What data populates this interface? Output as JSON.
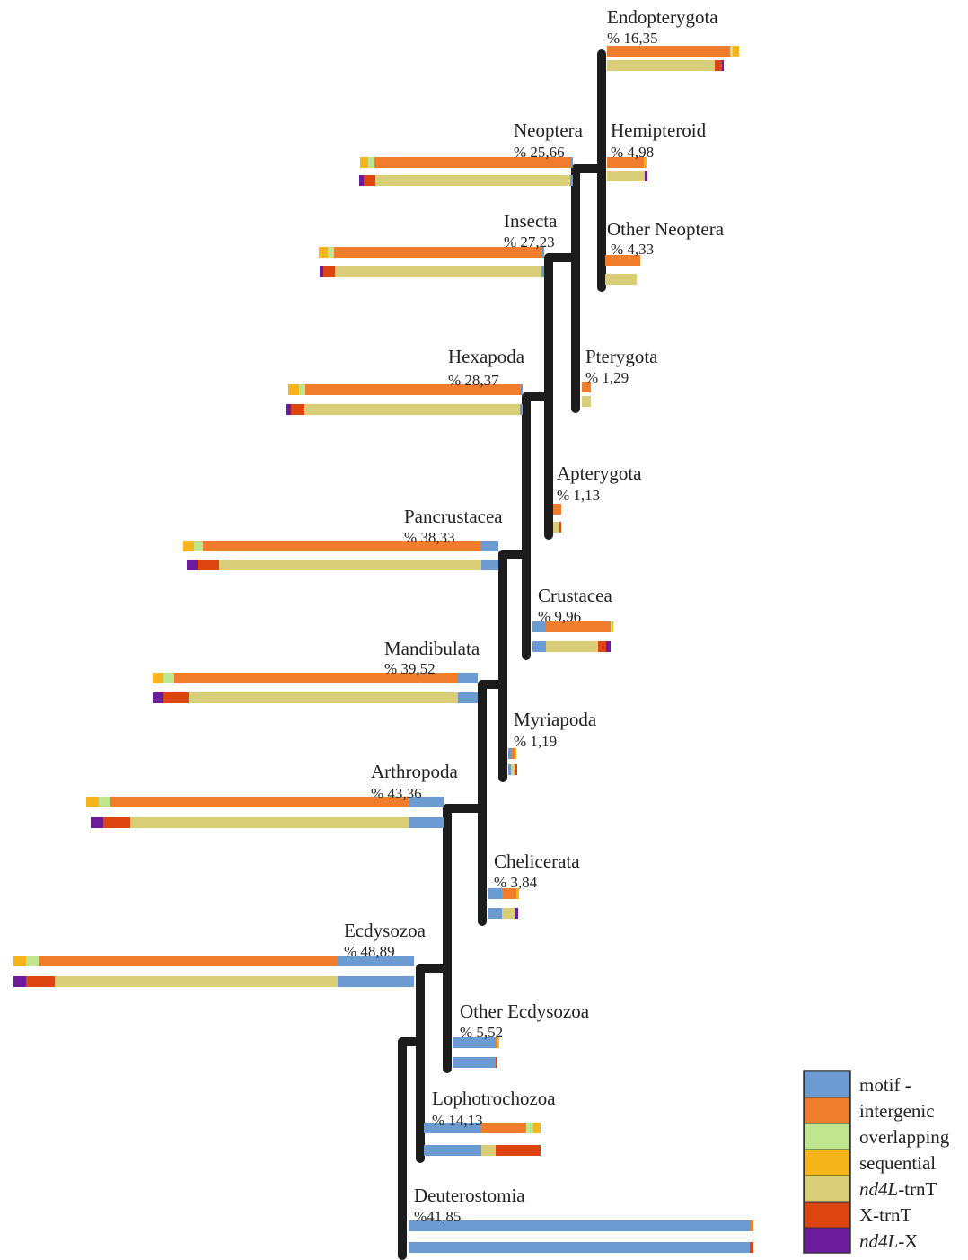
{
  "legend": [
    {
      "key": "motif",
      "label": "motif -",
      "italic": null,
      "color": "#6b9bd1"
    },
    {
      "key": "intergenic",
      "label": "intergenic",
      "italic": null,
      "color": "#f07d2b"
    },
    {
      "key": "overlapping",
      "label": "overlapping",
      "italic": null,
      "color": "#bfe58f"
    },
    {
      "key": "sequential",
      "label": "sequential",
      "italic": null,
      "color": "#f5b51b"
    },
    {
      "key": "nd4l_trnt",
      "label": "-trnT",
      "italic": "nd4L",
      "color": "#d9cd78"
    },
    {
      "key": "x_trnt",
      "label": "X-trnT",
      "italic": null,
      "color": "#dc4510"
    },
    {
      "key": "nd4l_x",
      "label": "-X",
      "italic": "nd4L",
      "color": "#6b1b9b"
    }
  ],
  "clades": [
    {
      "id": "endopterygota",
      "name": "Endopterygota",
      "percent": "% 16,35",
      "top": {
        "intergenic": 137,
        "overlapping": 3,
        "sequential": 7
      },
      "bottom": {
        "nd4l_trnt": 120,
        "x_trnt": 8,
        "nd4l_x": 2
      }
    },
    {
      "id": "neoptera",
      "name": "Neoptera",
      "percent": "% 25,66",
      "top": {
        "sequential": 9,
        "overlapping": 7,
        "intergenic": 218,
        "motif": 3
      },
      "bottom": {
        "nd4l_x": 5,
        "x_trnt": 13,
        "nd4l_trnt": 217,
        "motif": 3
      }
    },
    {
      "id": "hemipteroid",
      "name": "Hemipteroid",
      "percent": "% 4,98",
      "top": {
        "intergenic": 41,
        "sequential": 3
      },
      "bottom": {
        "nd4l_trnt": 42,
        "nd4l_x": 3
      }
    },
    {
      "id": "insecta",
      "name": "Insecta",
      "percent": "% 27,23",
      "top": {
        "sequential": 10,
        "overlapping": 7,
        "intergenic": 231,
        "motif": 3
      },
      "bottom": {
        "nd4l_x": 4,
        "x_trnt": 13,
        "nd4l_trnt": 230,
        "motif": 3
      }
    },
    {
      "id": "other_neoptera",
      "name": "Other Neoptera",
      "percent": "% 4,33",
      "top": {
        "intergenic": 39
      },
      "bottom": {
        "nd4l_trnt": 35
      }
    },
    {
      "id": "hexapoda",
      "name": "Hexapoda",
      "percent": "% 28,37",
      "top": {
        "sequential": 12,
        "overlapping": 7,
        "intergenic": 239,
        "motif": 3
      },
      "bottom": {
        "nd4l_x": 5,
        "x_trnt": 15,
        "nd4l_trnt": 240,
        "motif": 3
      }
    },
    {
      "id": "pterygota",
      "name": "Pterygota",
      "percent": "% 1,29",
      "top": {
        "intergenic": 10
      },
      "bottom": {
        "nd4l_trnt": 10
      }
    },
    {
      "id": "apterygota",
      "name": "Apterygota",
      "percent": "% 1,13",
      "top": {
        "intergenic": 9
      },
      "bottom": {
        "nd4l_trnt": 7,
        "x_trnt": 2
      }
    },
    {
      "id": "pancrustacea",
      "name": "Pancrustacea",
      "percent": "% 38,33",
      "top": {
        "sequential": 12,
        "overlapping": 10,
        "intergenic": 310,
        "motif": 19
      },
      "bottom": {
        "nd4l_x": 12,
        "x_trnt": 24,
        "nd4l_trnt": 292,
        "motif": 19
      }
    },
    {
      "id": "crustacea",
      "name": "Crustacea",
      "percent": "% 9,96",
      "top": {
        "motif": 15,
        "intergenic": 72,
        "overlapping": 1,
        "sequential": 2
      },
      "bottom": {
        "motif": 15,
        "nd4l_trnt": 58,
        "x_trnt": 9,
        "nd4l_x": 5
      }
    },
    {
      "id": "mandibulata",
      "name": "Mandibulata",
      "percent": "% 39,52",
      "top": {
        "sequential": 12,
        "overlapping": 12,
        "intergenic": 316,
        "motif": 22
      },
      "bottom": {
        "nd4l_x": 12,
        "x_trnt": 28,
        "nd4l_trnt": 300,
        "motif": 22
      }
    },
    {
      "id": "myriapoda",
      "name": "Myriapoda",
      "percent": "% 1,19",
      "top": {
        "motif": 3,
        "intergenic": 4,
        "sequential": 2
      },
      "bottom": {
        "motif": 3,
        "nd4l_trnt": 4,
        "x_trnt": 3
      }
    },
    {
      "id": "arthropoda",
      "name": "Arthropoda",
      "percent": "% 43,36",
      "top": {
        "sequential": 14,
        "overlapping": 13,
        "intergenic": 333,
        "motif": 38
      },
      "bottom": {
        "nd4l_x": 14,
        "x_trnt": 30,
        "nd4l_trnt": 311,
        "motif": 38
      }
    },
    {
      "id": "chelicerata",
      "name": "Chelicerata",
      "percent": "% 3,84",
      "top": {
        "motif": 16,
        "intergenic": 16,
        "sequential": 3
      },
      "bottom": {
        "motif": 16,
        "nd4l_trnt": 14,
        "nd4l_x": 4
      }
    },
    {
      "id": "ecdysozoa",
      "name": "Ecdysozoa",
      "percent": "% 48,89",
      "top": {
        "sequential": 14,
        "overlapping": 14,
        "intergenic": 333,
        "motif": 85
      },
      "bottom": {
        "nd4l_x": 14,
        "x_trnt": 32,
        "nd4l_trnt": 315,
        "motif": 85
      }
    },
    {
      "id": "other_ecdysozoa",
      "name": "Other Ecdysozoa",
      "percent": "% 5,52",
      "top": {
        "motif": 48,
        "intergenic": 2,
        "sequential": 2
      },
      "bottom": {
        "motif": 48,
        "x_trnt": 2
      }
    },
    {
      "id": "lophotrochozoa",
      "name": "Lophotrochozoa",
      "percent": "% 14,13",
      "top": {
        "motif": 64,
        "intergenic": 50,
        "overlapping": 8,
        "sequential": 8
      },
      "bottom": {
        "motif": 64,
        "nd4l_trnt": 16,
        "x_trnt": 50
      }
    },
    {
      "id": "deuterostomia",
      "name": "Deuterostomia",
      "percent": "%41,85",
      "top": {
        "motif": 380,
        "intergenic": 4
      },
      "bottom": {
        "motif": 380,
        "x_trnt": 4
      }
    }
  ]
}
